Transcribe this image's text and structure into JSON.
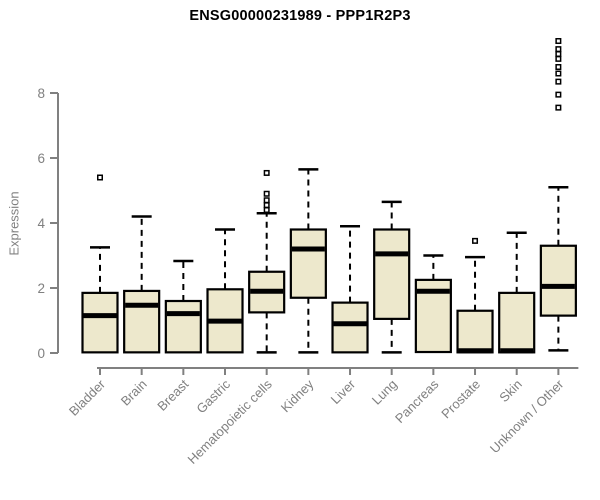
{
  "chart_data": {
    "type": "boxplot",
    "title": "ENSG00000231989 - PPP1R2P3",
    "ylabel": "Expression",
    "xlabel": "",
    "ylim": [
      0,
      9.8
    ],
    "yticks": [
      0,
      2,
      4,
      6,
      8
    ],
    "grid": false,
    "legend": "none",
    "categories": [
      "Bladder",
      "Brain",
      "Breast",
      "Gastric",
      "Hematopoietic cells",
      "Kidney",
      "Liver",
      "Lung",
      "Pancreas",
      "Prostate",
      "Skin",
      "Unknown / Other"
    ],
    "boxes": [
      {
        "category": "Bladder",
        "q1": 0.02,
        "median": 1.15,
        "q3": 1.85,
        "whisker_low": 0.02,
        "whisker_high": 3.25,
        "outliers": [
          5.4
        ]
      },
      {
        "category": "Brain",
        "q1": 0.02,
        "median": 1.47,
        "q3": 1.91,
        "whisker_low": 0.02,
        "whisker_high": 4.2,
        "outliers": []
      },
      {
        "category": "Breast",
        "q1": 0.02,
        "median": 1.21,
        "q3": 1.6,
        "whisker_low": 0.02,
        "whisker_high": 2.83,
        "outliers": []
      },
      {
        "category": "Gastric",
        "q1": 0.02,
        "median": 0.98,
        "q3": 1.96,
        "whisker_low": 0.02,
        "whisker_high": 3.8,
        "outliers": []
      },
      {
        "category": "Hematopoietic cells",
        "q1": 1.25,
        "median": 1.9,
        "q3": 2.5,
        "whisker_low": 0.02,
        "whisker_high": 4.3,
        "outliers": [
          4.4,
          4.55,
          4.7,
          4.9,
          5.54
        ]
      },
      {
        "category": "Kidney",
        "q1": 1.7,
        "median": 3.2,
        "q3": 3.8,
        "whisker_low": 0.02,
        "whisker_high": 5.65,
        "outliers": []
      },
      {
        "category": "Liver",
        "q1": 0.02,
        "median": 0.9,
        "q3": 1.55,
        "whisker_low": 0.02,
        "whisker_high": 3.9,
        "outliers": []
      },
      {
        "category": "Lung",
        "q1": 1.05,
        "median": 3.05,
        "q3": 3.8,
        "whisker_low": 0.02,
        "whisker_high": 4.65,
        "outliers": []
      },
      {
        "category": "Pancreas",
        "q1": 0.03,
        "median": 1.9,
        "q3": 2.25,
        "whisker_low": 0.03,
        "whisker_high": 3.0,
        "outliers": []
      },
      {
        "category": "Prostate",
        "q1": 0.02,
        "median": 0.07,
        "q3": 1.3,
        "whisker_low": 0.02,
        "whisker_high": 2.95,
        "outliers": [
          3.45
        ]
      },
      {
        "category": "Skin",
        "q1": 0.02,
        "median": 0.07,
        "q3": 1.85,
        "whisker_low": 0.02,
        "whisker_high": 3.7,
        "outliers": []
      },
      {
        "category": "Unknown / Other",
        "q1": 1.15,
        "median": 2.05,
        "q3": 3.3,
        "whisker_low": 0.08,
        "whisker_high": 5.1,
        "outliers": [
          7.55,
          7.95,
          8.35,
          8.6,
          8.8,
          9.05,
          9.2,
          9.35,
          9.6
        ]
      }
    ],
    "colors": {
      "box_fill": "#EDE8CC",
      "box_stroke": "#000000",
      "median": "#000000",
      "whisker": "#000000",
      "axis": "#808080",
      "tick_label": "#808080",
      "title": "#000000",
      "background": "#FFFFFF"
    }
  }
}
